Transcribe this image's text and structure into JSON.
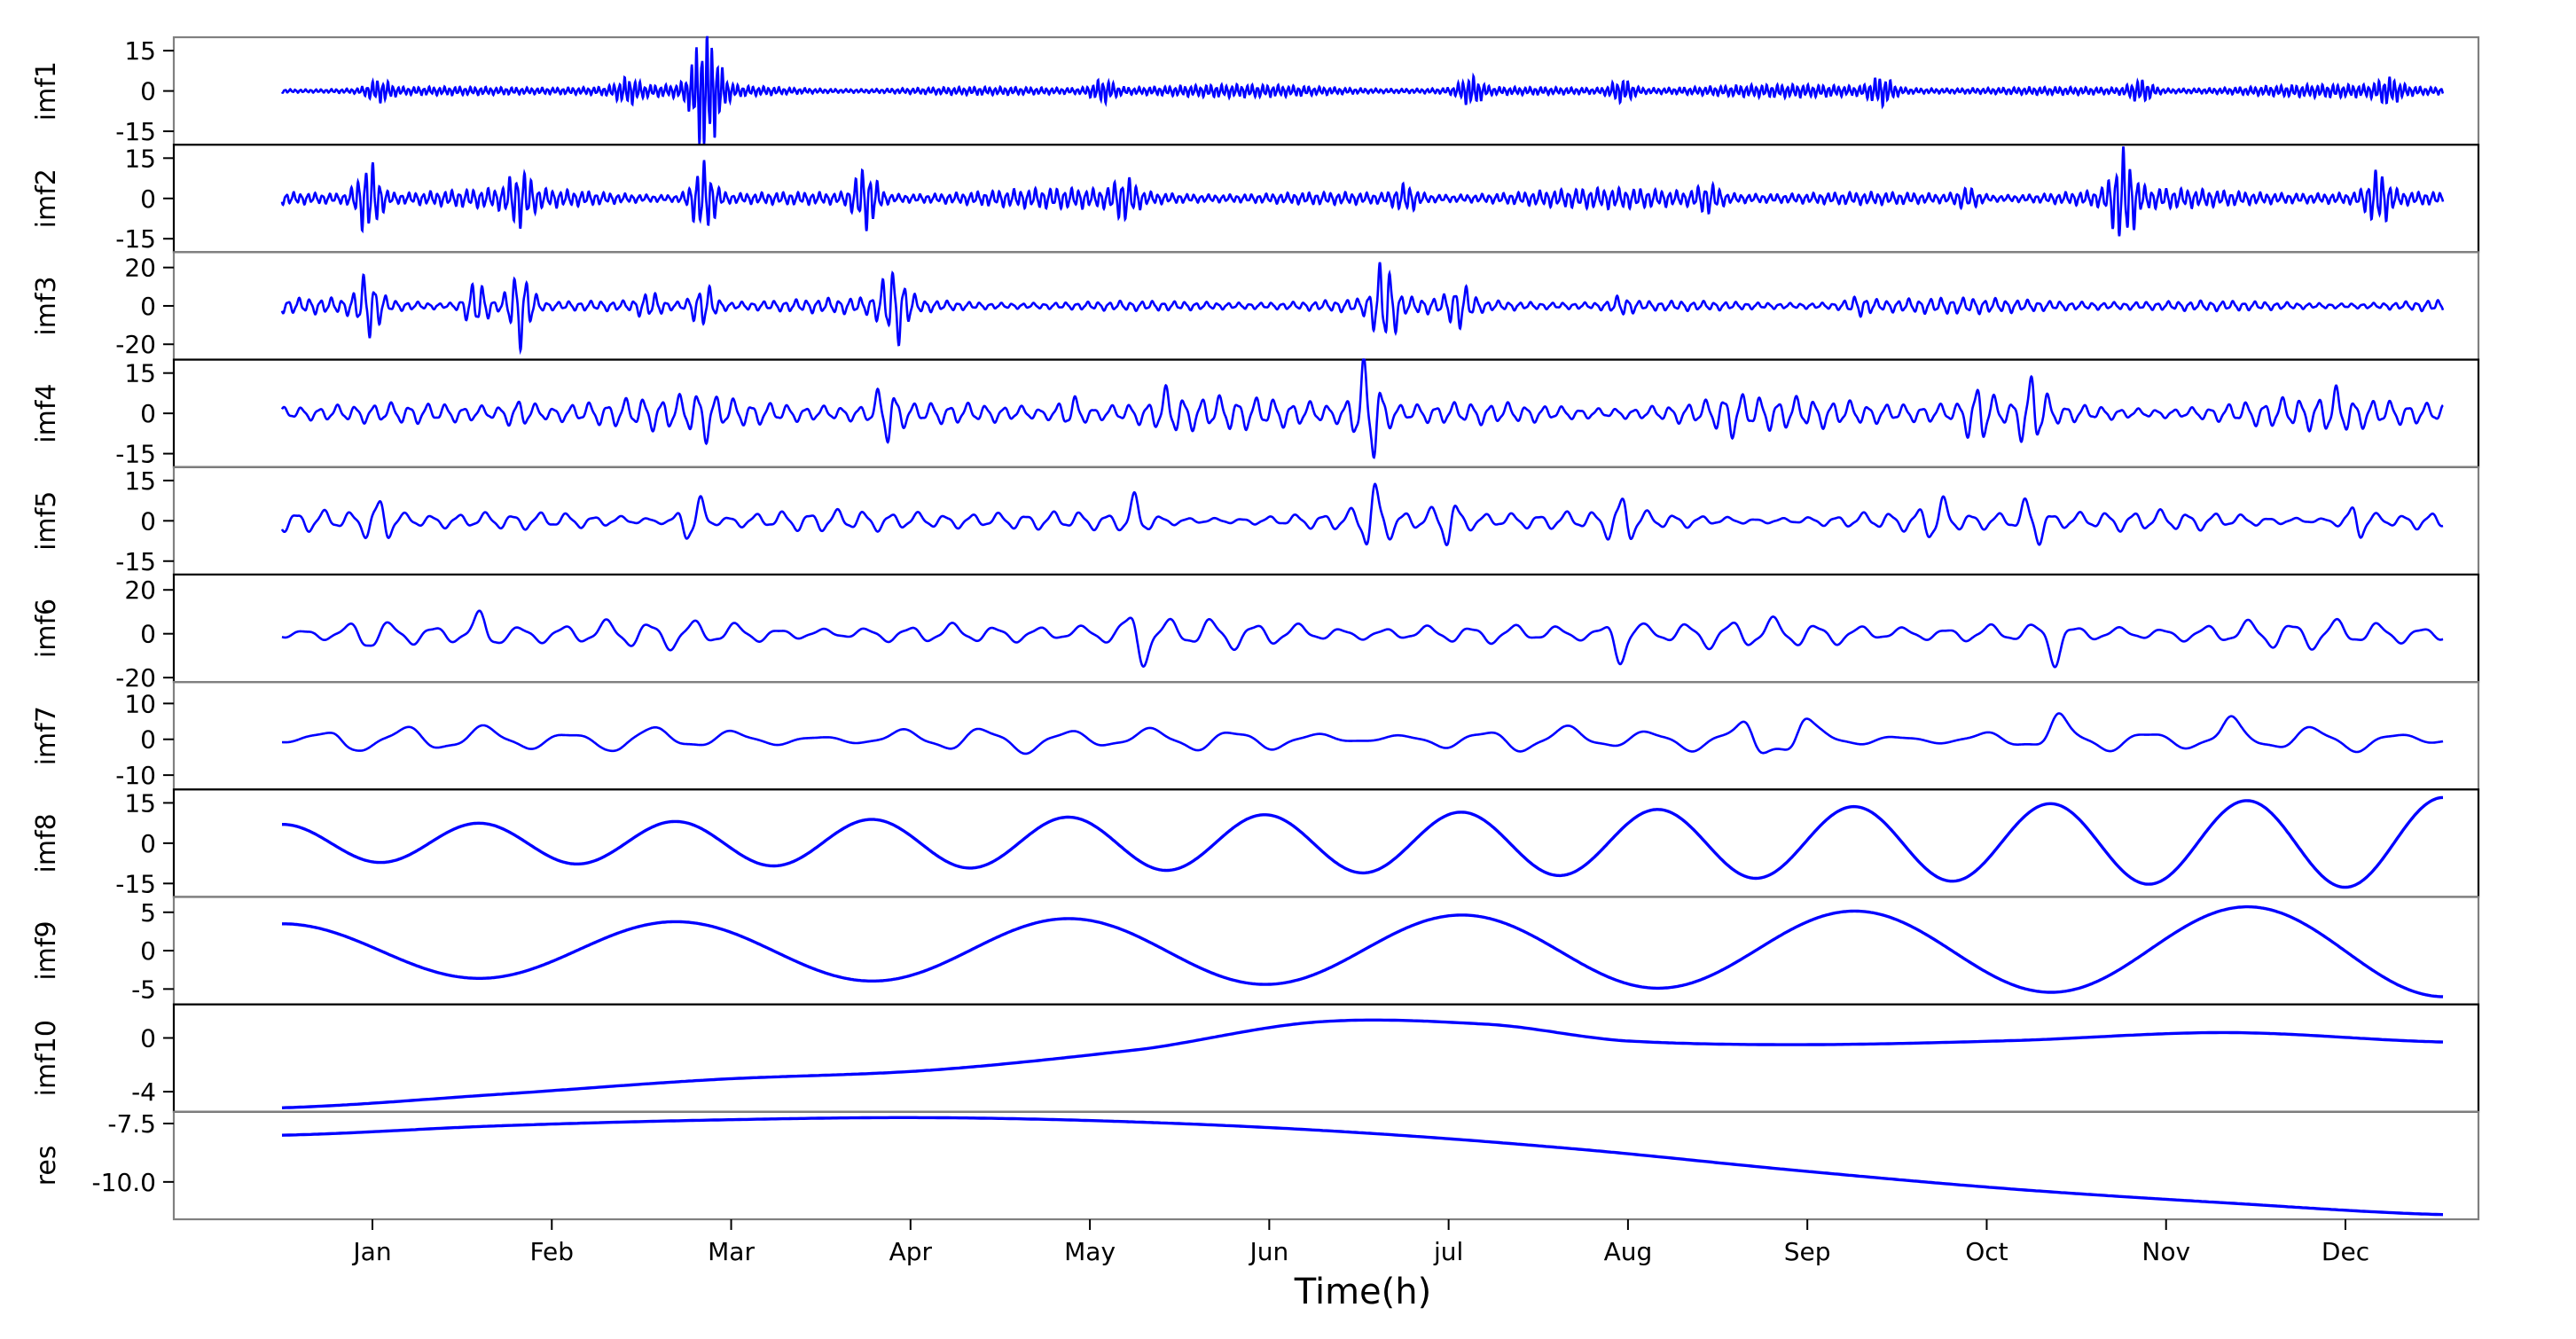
{
  "chart_data": {
    "type": "line",
    "xlabel": "Time(h)",
    "x_ticks": [
      "Jan",
      "Feb",
      "Mar",
      "Apr",
      "May",
      "Jun",
      "jul",
      "Aug",
      "Sep",
      "Oct",
      "Nov",
      "Dec"
    ],
    "series_color": "#0000ff",
    "grid": false,
    "subplots": [
      {
        "name": "imf1",
        "ylim": [
          -20,
          20
        ],
        "yticks": [
          "15",
          "0",
          "-15"
        ],
        "yvals": [
          15,
          0,
          -15
        ],
        "shape": {
          "kind": "noise",
          "amp": 2.5,
          "freq": 420,
          "bursts": [
            [
              0.045,
              6
            ],
            [
              0.16,
              6
            ],
            [
              0.2,
              9
            ],
            [
              0.195,
              22
            ],
            [
              0.38,
              6
            ],
            [
              0.55,
              7
            ],
            [
              0.62,
              6
            ],
            [
              0.74,
              7
            ],
            [
              0.86,
              6
            ],
            [
              0.975,
              6
            ]
          ]
        }
      },
      {
        "name": "imf2",
        "ylim": [
          -20,
          20
        ],
        "yticks": [
          "15",
          "0",
          "-15"
        ],
        "yvals": [
          15,
          0,
          -15
        ],
        "shape": {
          "kind": "noise",
          "amp": 4,
          "freq": 300,
          "bursts": [
            [
              0.04,
              17
            ],
            [
              0.11,
              12
            ],
            [
              0.195,
              17
            ],
            [
              0.27,
              15
            ],
            [
              0.39,
              10
            ],
            [
              0.52,
              8
            ],
            [
              0.66,
              8
            ],
            [
              0.78,
              7
            ],
            [
              0.852,
              20
            ],
            [
              0.97,
              13
            ]
          ]
        }
      },
      {
        "name": "imf3",
        "ylim": [
          -28,
          28
        ],
        "yticks": [
          "20",
          "0",
          "-20"
        ],
        "yvals": [
          20,
          0,
          -20
        ],
        "shape": {
          "kind": "noise",
          "amp": 4.5,
          "freq": 200,
          "bursts": [
            [
              0.04,
              20
            ],
            [
              0.09,
              17
            ],
            [
              0.11,
              26
            ],
            [
              0.17,
              10
            ],
            [
              0.195,
              15
            ],
            [
              0.28,
              12
            ],
            [
              0.285,
              18
            ],
            [
              0.51,
              26
            ],
            [
              0.545,
              14
            ],
            [
              0.62,
              8
            ],
            [
              0.73,
              8
            ]
          ]
        }
      },
      {
        "name": "imf4",
        "ylim": [
          -20,
          20
        ],
        "yticks": [
          "15",
          "0",
          "-15"
        ],
        "yvals": [
          15,
          0,
          -15
        ],
        "shape": {
          "kind": "noise",
          "amp": 7,
          "freq": 120,
          "bursts": [
            [
              0.11,
              11
            ],
            [
              0.195,
              12
            ],
            [
              0.28,
              17
            ],
            [
              0.365,
              12
            ],
            [
              0.41,
              12
            ],
            [
              0.5,
              18
            ],
            [
              0.505,
              20
            ],
            [
              0.67,
              11
            ],
            [
              0.785,
              17
            ],
            [
              0.81,
              20
            ],
            [
              0.95,
              11
            ]
          ]
        }
      },
      {
        "name": "imf5",
        "ylim": [
          -20,
          20
        ],
        "yticks": [
          "15",
          "0",
          "-15"
        ],
        "yvals": [
          15,
          0,
          -15
        ],
        "shape": {
          "kind": "noise",
          "amp": 5,
          "freq": 80,
          "bursts": [
            [
              0.045,
              15
            ],
            [
              0.19,
              17
            ],
            [
              0.395,
              13
            ],
            [
              0.505,
              20
            ],
            [
              0.54,
              14
            ],
            [
              0.62,
              15
            ],
            [
              0.765,
              13
            ],
            [
              0.81,
              14
            ],
            [
              0.96,
              13
            ]
          ]
        }
      },
      {
        "name": "imf6",
        "ylim": [
          -22,
          27
        ],
        "yticks": [
          "20",
          "0",
          "-20"
        ],
        "yvals": [
          20,
          0,
          -20
        ],
        "shape": {
          "kind": "noise",
          "amp": 8,
          "freq": 50,
          "bursts": [
            [
              0.04,
              17
            ],
            [
              0.095,
              18
            ],
            [
              0.395,
              24
            ],
            [
              0.62,
              22
            ],
            [
              0.82,
              19
            ]
          ]
        }
      },
      {
        "name": "imf7",
        "ylim": [
          -14,
          16
        ],
        "yticks": [
          "10",
          "0",
          "-10"
        ],
        "yvals": [
          10,
          0,
          -10
        ],
        "shape": {
          "kind": "noise",
          "amp": 5,
          "freq": 26,
          "bursts": [
            [
              0.025,
              10
            ],
            [
              0.16,
              9
            ],
            [
              0.68,
              11
            ],
            [
              0.7,
              16
            ],
            [
              0.82,
              10
            ],
            [
              0.9,
              9
            ]
          ]
        }
      },
      {
        "name": "imf8",
        "ylim": [
          -20,
          20
        ],
        "yticks": [
          "15",
          "0",
          "-15"
        ],
        "yvals": [
          15,
          0,
          -15
        ],
        "shape": {
          "kind": "growing",
          "amp0": 7,
          "amp1": 17,
          "freq": 11
        }
      },
      {
        "name": "imf9",
        "ylim": [
          -7,
          7
        ],
        "yticks": [
          "5",
          "0",
          "-5"
        ],
        "yvals": [
          5,
          0,
          -5
        ],
        "shape": {
          "kind": "growing",
          "amp0": 3.5,
          "amp1": 6,
          "freq": 5.5
        }
      },
      {
        "name": "imf10",
        "ylim": [
          -5.5,
          2.5
        ],
        "yticks": [
          "0",
          "-4"
        ],
        "yvals": [
          0,
          -4
        ],
        "shape": {
          "kind": "points",
          "points": [
            [
              0,
              -5.2
            ],
            [
              0.1,
              -4.2
            ],
            [
              0.2,
              -3.1
            ],
            [
              0.3,
              -2.4
            ],
            [
              0.4,
              -0.8
            ],
            [
              0.48,
              1.2
            ],
            [
              0.56,
              1.0
            ],
            [
              0.62,
              -0.2
            ],
            [
              0.7,
              -0.5
            ],
            [
              0.8,
              -0.2
            ],
            [
              0.9,
              0.4
            ],
            [
              1.0,
              -0.3
            ]
          ]
        }
      },
      {
        "name": "res",
        "ylim": [
          -11.6,
          -7.0
        ],
        "yticks": [
          "-7.5",
          "-10.0"
        ],
        "yvals": [
          -7.5,
          -10.0
        ],
        "shape": {
          "kind": "points",
          "points": [
            [
              0,
              -8.0
            ],
            [
              0.1,
              -7.6
            ],
            [
              0.2,
              -7.35
            ],
            [
              0.3,
              -7.25
            ],
            [
              0.4,
              -7.45
            ],
            [
              0.5,
              -7.9
            ],
            [
              0.6,
              -8.6
            ],
            [
              0.7,
              -9.5
            ],
            [
              0.8,
              -10.3
            ],
            [
              0.9,
              -10.9
            ],
            [
              1.0,
              -11.4
            ]
          ]
        }
      }
    ]
  }
}
